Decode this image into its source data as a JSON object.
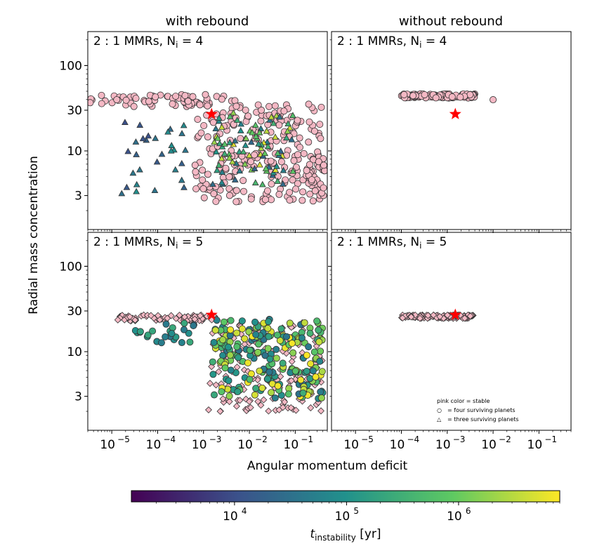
{
  "figure": {
    "column_titles": [
      "with rebound",
      "without rebound"
    ],
    "xlabel": "Angular momentum deficit",
    "ylabel": "Radial mass concentration",
    "x_tick_labels": [
      "10",
      "10",
      "10",
      "10",
      "10"
    ],
    "x_tick_exponents": [
      "−5",
      "−4",
      "−3",
      "−2",
      "−1"
    ],
    "x_tick_values": [
      1e-05,
      0.0001,
      0.001,
      0.01,
      0.1
    ],
    "y_tick_labels": [
      "100",
      "30",
      "10",
      "3"
    ],
    "y_tick_values": [
      100,
      30,
      10,
      3
    ]
  },
  "legend": {
    "title": "pink color = stable",
    "circle_label": "= four surviving planets",
    "triangle_label": "= three surviving planets",
    "circle_symbol": "○",
    "triangle_symbol": "△"
  },
  "colorbar": {
    "label_main": "t",
    "label_sub": "instability",
    "label_unit": " [yr]",
    "tick_base": [
      "10",
      "10",
      "10"
    ],
    "tick_exponents": [
      "4",
      "5",
      "6"
    ],
    "tick_values": [
      10000,
      100000,
      1000000
    ],
    "range": [
      1200,
      8000000
    ],
    "colormap": [
      "#440154",
      "#3b528b",
      "#21918c",
      "#5ec962",
      "#fde725"
    ]
  },
  "colors": {
    "stable": "#f4b8c4",
    "star": "#ff0000",
    "edge": "#333333"
  },
  "chart_data": [
    {
      "type": "scatter",
      "panel_label": "2 : 1 MMRs,  N",
      "panel_label_sub": "i",
      "panel_label_value": " = 4",
      "column": "with rebound",
      "xscale": "log",
      "yscale": "log",
      "xlim": [
        3e-06,
        0.5
      ],
      "ylim": [
        1.2,
        250
      ],
      "star": {
        "x": 0.0015,
        "y": 27
      },
      "clusters": [
        {
          "marker": "circle",
          "status": "stable",
          "count": 70,
          "x_log": [
            -5.5,
            -2.3
          ],
          "y_log": [
            1.52,
            1.66
          ]
        },
        {
          "marker": "circle",
          "status": "stable",
          "count": 230,
          "x_log": [
            -3.2,
            -0.4
          ],
          "y_log": [
            0.4,
            1.55
          ]
        },
        {
          "marker": "circle",
          "status": "stable",
          "count": 30,
          "x_log": [
            -0.8,
            -0.35
          ],
          "y_log": [
            0.45,
            0.95
          ]
        },
        {
          "marker": "triangle",
          "status": "unstable",
          "count": 30,
          "x_log": [
            -4.8,
            -3.3
          ],
          "y_log": [
            0.5,
            1.45
          ],
          "t_log": [
            4.0,
            5.0
          ]
        },
        {
          "marker": "triangle",
          "status": "unstable",
          "count": 90,
          "x_log": [
            -2.8,
            -1.0
          ],
          "y_log": [
            0.6,
            1.45
          ],
          "t_log": [
            4.3,
            6.8
          ]
        }
      ]
    },
    {
      "type": "scatter",
      "panel_label": "2 : 1 MMRs,  N",
      "panel_label_sub": "i",
      "panel_label_value": " = 4",
      "column": "without rebound",
      "xscale": "log",
      "yscale": "log",
      "xlim": [
        3e-06,
        0.5
      ],
      "ylim": [
        1.2,
        250
      ],
      "star": {
        "x": 0.0015,
        "y": 27
      },
      "clusters": [
        {
          "marker": "circle",
          "status": "stable",
          "count": 110,
          "x_log": [
            -4.0,
            -2.35
          ],
          "y_log": [
            1.62,
            1.67
          ]
        },
        {
          "marker": "circle",
          "status": "stable",
          "count": 1,
          "x_log": [
            -2.0,
            -2.0
          ],
          "y_log": [
            1.6,
            1.6
          ]
        }
      ]
    },
    {
      "type": "scatter",
      "panel_label": "2 : 1 MMRs,  N",
      "panel_label_sub": "i",
      "panel_label_value": " = 5",
      "column": "with rebound",
      "xscale": "log",
      "yscale": "log",
      "xlim": [
        3e-06,
        0.5
      ],
      "ylim": [
        1.2,
        250
      ],
      "star": {
        "x": 0.0015,
        "y": 27
      },
      "clusters": [
        {
          "marker": "diamond",
          "status": "stable",
          "count": 80,
          "x_log": [
            -4.9,
            -2.7
          ],
          "y_log": [
            1.36,
            1.43
          ]
        },
        {
          "marker": "diamond",
          "status": "stable",
          "count": 170,
          "x_log": [
            -2.9,
            -0.4
          ],
          "y_log": [
            0.3,
            1.35
          ]
        },
        {
          "marker": "circle",
          "status": "unstable",
          "count": 25,
          "x_log": [
            -4.5,
            -3.1
          ],
          "y_log": [
            1.1,
            1.35
          ],
          "t_log": [
            4.4,
            5.4
          ]
        },
        {
          "marker": "circle",
          "status": "unstable",
          "count": 220,
          "x_log": [
            -2.8,
            -0.4
          ],
          "y_log": [
            0.45,
            1.38
          ],
          "t_log": [
            4.5,
            6.9
          ]
        }
      ]
    },
    {
      "type": "scatter",
      "panel_label": "2 : 1 MMRs,  N",
      "panel_label_sub": "i",
      "panel_label_value": " = 5",
      "column": "without rebound",
      "xscale": "log",
      "yscale": "log",
      "xlim": [
        3e-06,
        0.5
      ],
      "ylim": [
        1.2,
        250
      ],
      "star": {
        "x": 0.0015,
        "y": 27
      },
      "clusters": [
        {
          "marker": "diamond",
          "status": "stable",
          "count": 130,
          "x_log": [
            -4.0,
            -2.4
          ],
          "y_log": [
            1.39,
            1.43
          ]
        }
      ]
    }
  ]
}
